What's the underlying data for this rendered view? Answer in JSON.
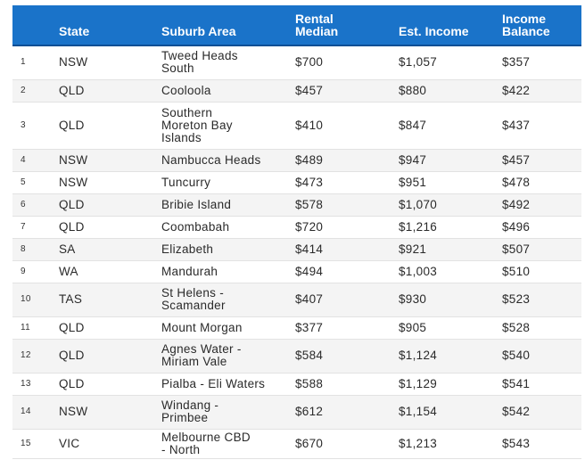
{
  "table": {
    "headers": {
      "state": "State",
      "suburb": "Suburb Area",
      "rental_1": "Rental",
      "rental_2": "Median",
      "income": "Est. Income",
      "balance_1": "Income",
      "balance_2": "Balance"
    },
    "rows": [
      {
        "rank": "1",
        "state": "NSW",
        "suburb": "Tweed Heads South",
        "rental": "$700",
        "income": "$1,057",
        "balance": "$357"
      },
      {
        "rank": "2",
        "state": "QLD",
        "suburb": "Cooloola",
        "rental": "$457",
        "income": "$880",
        "balance": "$422"
      },
      {
        "rank": "3",
        "state": "QLD",
        "suburb": "Southern Moreton Bay Islands",
        "rental": "$410",
        "income": "$847",
        "balance": "$437"
      },
      {
        "rank": "4",
        "state": "NSW",
        "suburb": "Nambucca Heads",
        "rental": "$489",
        "income": "$947",
        "balance": "$457"
      },
      {
        "rank": "5",
        "state": "NSW",
        "suburb": "Tuncurry",
        "rental": "$473",
        "income": "$951",
        "balance": "$478"
      },
      {
        "rank": "6",
        "state": "QLD",
        "suburb": "Bribie Island",
        "rental": "$578",
        "income": "$1,070",
        "balance": "$492"
      },
      {
        "rank": "7",
        "state": "QLD",
        "suburb": "Coombabah",
        "rental": "$720",
        "income": "$1,216",
        "balance": "$496"
      },
      {
        "rank": "8",
        "state": "SA",
        "suburb": "Elizabeth",
        "rental": "$414",
        "income": "$921",
        "balance": "$507"
      },
      {
        "rank": "9",
        "state": "WA",
        "suburb": "Mandurah",
        "rental": "$494",
        "income": "$1,003",
        "balance": "$510"
      },
      {
        "rank": "10",
        "state": "TAS",
        "suburb": "St Helens - Scamander",
        "rental": "$407",
        "income": "$930",
        "balance": "$523"
      },
      {
        "rank": "11",
        "state": "QLD",
        "suburb": "Mount Morgan",
        "rental": "$377",
        "income": "$905",
        "balance": "$528"
      },
      {
        "rank": "12",
        "state": "QLD",
        "suburb": "Agnes Water - Miriam Vale",
        "rental": "$584",
        "income": "$1,124",
        "balance": "$540"
      },
      {
        "rank": "13",
        "state": "QLD",
        "suburb": "Pialba - Eli Waters",
        "rental": "$588",
        "income": "$1,129",
        "balance": "$541"
      },
      {
        "rank": "14",
        "state": "NSW",
        "suburb": "Windang - Primbee",
        "rental": "$612",
        "income": "$1,154",
        "balance": "$542"
      },
      {
        "rank": "15",
        "state": "VIC",
        "suburb": "Melbourne CBD - North",
        "rental": "$670",
        "income": "$1,213",
        "balance": "$543"
      }
    ]
  },
  "colors": {
    "header_background": "#1a73c9",
    "header_text": "#ffffff",
    "row_stripe": "#f4f4f4"
  }
}
